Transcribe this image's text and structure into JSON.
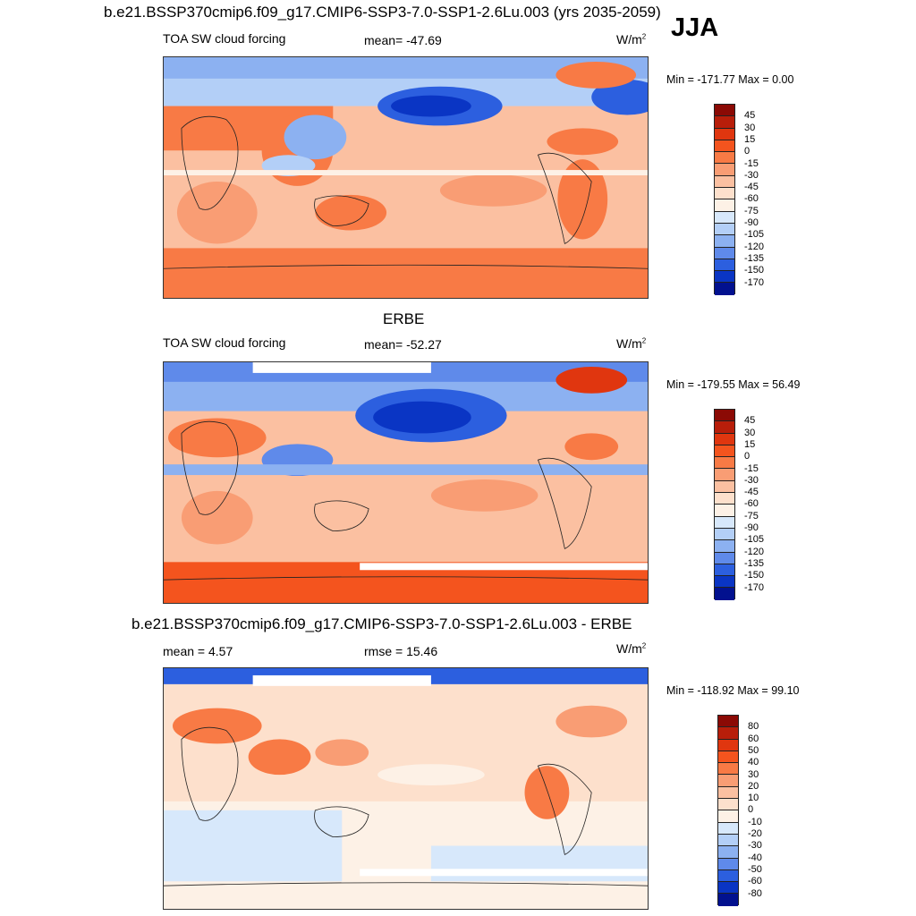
{
  "header": {
    "title": "b.e21.BSSP370cmip6.f09_g17.CMIP6-SSP3-7.0-SSP1-2.6Lu.003 (yrs 2035-2059)",
    "season": "JJA"
  },
  "panels": [
    {
      "section_title": "",
      "left_label": "TOA SW cloud forcing",
      "center_label": "mean= -47.69",
      "units": "W/m",
      "units_sup": "2",
      "min_max": "Min = -171.77 Max =   0.00"
    },
    {
      "section_title": "ERBE",
      "left_label": "TOA SW cloud forcing",
      "center_label": "mean= -52.27",
      "units": "W/m",
      "units_sup": "2",
      "min_max": "Min = -179.55 Max =  56.49"
    },
    {
      "section_title": "b.e21.BSSP370cmip6.f09_g17.CMIP6-SSP3-7.0-SSP1-2.6Lu.003 - ERBE",
      "left_label": "mean =   4.57",
      "center_label": "rmse =  15.46",
      "units": "W/m",
      "units_sup": "2",
      "min_max": "Min = -118.92 Max =  99.10"
    }
  ],
  "chart_data": [
    {
      "type": "heatmap",
      "title": "TOA SW cloud forcing",
      "mean": -47.69,
      "min": -171.77,
      "max": 0.0,
      "units": "W/m2",
      "colorbar": {
        "levels": [
          "45",
          "30",
          "15",
          "0",
          "-15",
          "-30",
          "-45",
          "-60",
          "-75",
          "-90",
          "-105",
          "-120",
          "-135",
          "-150",
          "-170"
        ],
        "colors": [
          "#8b0a05",
          "#b81e0a",
          "#e0360f",
          "#f4541e",
          "#f87a45",
          "#f99d74",
          "#fbc0a1",
          "#fde0cc",
          "#fdf1e6",
          "#d7e8fb",
          "#b3cff7",
          "#8cb1f1",
          "#5f8aea",
          "#2c5fdf",
          "#0a35c4",
          "#02118f"
        ]
      }
    },
    {
      "type": "heatmap",
      "title": "TOA SW cloud forcing",
      "mean": -52.27,
      "min": -179.55,
      "max": 56.49,
      "units": "W/m2",
      "colorbar": {
        "levels": [
          "45",
          "30",
          "15",
          "0",
          "-15",
          "-30",
          "-45",
          "-60",
          "-75",
          "-90",
          "-105",
          "-120",
          "-135",
          "-150",
          "-170"
        ],
        "colors": [
          "#8b0a05",
          "#b81e0a",
          "#e0360f",
          "#f4541e",
          "#f87a45",
          "#f99d74",
          "#fbc0a1",
          "#fde0cc",
          "#fdf1e6",
          "#d7e8fb",
          "#b3cff7",
          "#8cb1f1",
          "#5f8aea",
          "#2c5fdf",
          "#0a35c4",
          "#02118f"
        ]
      }
    },
    {
      "type": "heatmap",
      "title": "b.e21.BSSP370cmip6.f09_g17.CMIP6-SSP3-7.0-SSP1-2.6Lu.003 - ERBE",
      "mean": 4.57,
      "rmse": 15.46,
      "min": -118.92,
      "max": 99.1,
      "units": "W/m2",
      "colorbar": {
        "levels": [
          "80",
          "60",
          "50",
          "40",
          "30",
          "20",
          "10",
          "0",
          "-10",
          "-20",
          "-30",
          "-40",
          "-50",
          "-60",
          "-80"
        ],
        "colors": [
          "#8b0a05",
          "#b81e0a",
          "#e0360f",
          "#f4541e",
          "#f87a45",
          "#f99d74",
          "#fbc0a1",
          "#fde0cc",
          "#fdf1e6",
          "#d7e8fb",
          "#b3cff7",
          "#8cb1f1",
          "#5f8aea",
          "#2c5fdf",
          "#0a35c4",
          "#02118f"
        ]
      }
    }
  ]
}
